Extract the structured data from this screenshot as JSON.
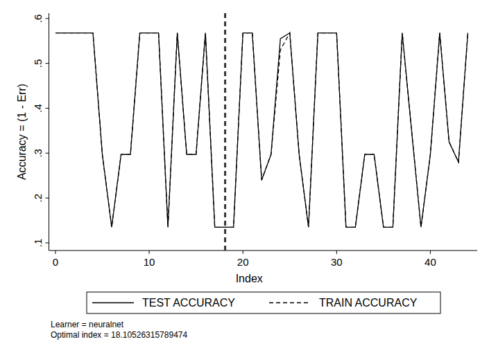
{
  "chart_data": {
    "type": "line",
    "x_label": "Index",
    "y_label": "Accuracy = (1 - Err)",
    "x": [
      0,
      1,
      2,
      3,
      4,
      5,
      6,
      7,
      8,
      9,
      10,
      11,
      12,
      13,
      14,
      15,
      16,
      17,
      18,
      19,
      20,
      21,
      22,
      23,
      24,
      25,
      26,
      27,
      28,
      29,
      30,
      31,
      32,
      33,
      34,
      35,
      36,
      37,
      38,
      39,
      40,
      41,
      42,
      43,
      44
    ],
    "series": [
      {
        "name": "TEST ACCURACY",
        "color": "#000000",
        "line_style": "solid",
        "values": [
          0.568,
          0.568,
          0.568,
          0.568,
          0.568,
          0.297,
          0.135,
          0.297,
          0.297,
          0.568,
          0.568,
          0.568,
          0.135,
          0.568,
          0.297,
          0.297,
          0.568,
          0.135,
          0.135,
          0.135,
          0.568,
          0.568,
          0.24,
          0.297,
          0.555,
          0.568,
          0.297,
          0.135,
          0.568,
          0.568,
          0.568,
          0.135,
          0.135,
          0.297,
          0.297,
          0.135,
          0.135,
          0.568,
          0.35,
          0.135,
          0.297,
          0.568,
          0.325,
          0.28,
          0.568
        ]
      },
      {
        "name": "TRAIN ACCURACY",
        "color": "#000000",
        "line_style": "dashed",
        "values": [
          0.568,
          0.568,
          0.568,
          0.568,
          0.568,
          0.297,
          0.135,
          0.297,
          0.297,
          0.568,
          0.568,
          0.568,
          0.135,
          0.568,
          0.297,
          0.297,
          0.568,
          0.135,
          0.135,
          0.135,
          0.568,
          0.568,
          0.24,
          0.297,
          0.53,
          0.568,
          0.297,
          0.135,
          0.568,
          0.568,
          0.568,
          0.135,
          0.135,
          0.297,
          0.297,
          0.135,
          0.135,
          0.568,
          0.35,
          0.135,
          0.297,
          0.568,
          0.325,
          0.28,
          0.568
        ]
      }
    ],
    "xlim": [
      -0.7,
      45
    ],
    "ylim": [
      0.083,
      0.612
    ],
    "xticks": [
      0,
      10,
      20,
      30,
      40
    ],
    "yticks": [
      {
        "value": 0.1,
        "label": ".1"
      },
      {
        "value": 0.2,
        "label": ".2"
      },
      {
        "value": 0.3,
        "label": ".3"
      },
      {
        "value": 0.4,
        "label": ".4"
      },
      {
        "value": 0.5,
        "label": ".5"
      },
      {
        "value": 0.6,
        "label": ".6"
      }
    ],
    "optimal_index": 18.10526315789474,
    "notes": [
      "Learner = neuralnet",
      "Optimal index = 18.10526315789474"
    ],
    "grid": false,
    "legend": "bottom"
  }
}
